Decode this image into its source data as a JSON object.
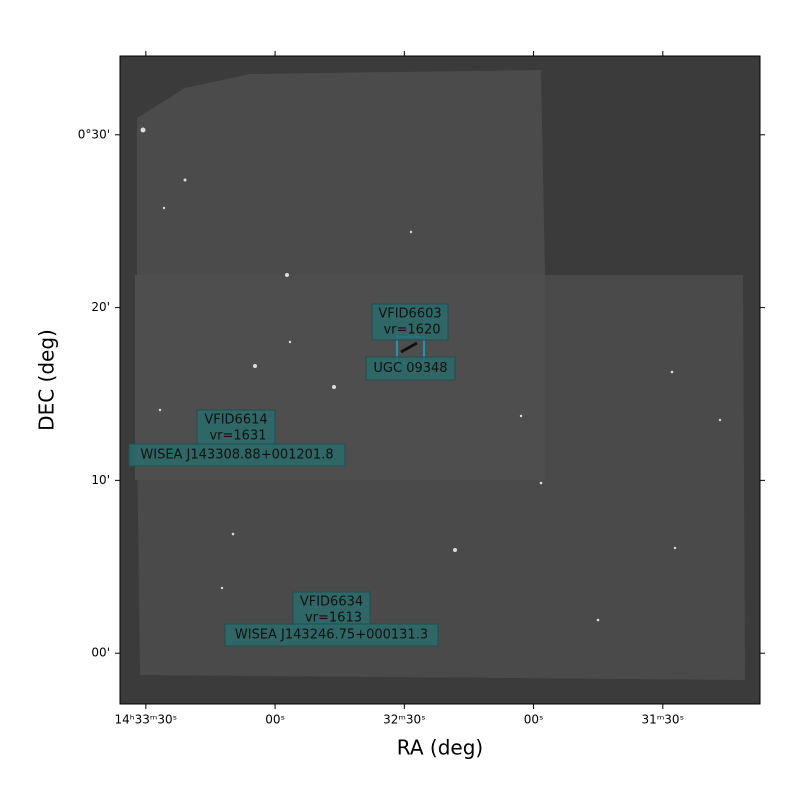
{
  "chart_data": {
    "type": "image",
    "xlabel": "RA (deg)",
    "ylabel": "DEC (deg)",
    "xlim": [
      218.4,
      217.781
    ],
    "ylim": [
      -0.049,
      0.576
    ],
    "xticks": [
      {
        "value": 218.375,
        "label": "14ʰ33ᵐ30ˢ"
      },
      {
        "value": 218.25,
        "label": "00ˢ"
      },
      {
        "value": 218.125,
        "label": "32ᵐ30ˢ"
      },
      {
        "value": 218.0,
        "label": "00ˢ"
      },
      {
        "value": 217.875,
        "label": "31ᵐ30ˢ"
      }
    ],
    "yticks": [
      {
        "value": 0.5,
        "label": "0°30'"
      },
      {
        "value": 0.3333,
        "label": "20'"
      },
      {
        "value": 0.1667,
        "label": "10'"
      },
      {
        "value": 0.0,
        "label": "00'"
      }
    ],
    "annotations": [
      {
        "lines": [
          "VFID6603",
          "vr=1620"
        ]
      },
      {
        "lines": [
          "UGC 09348"
        ]
      },
      {
        "lines": [
          "VFID6614",
          "vr=1631"
        ]
      },
      {
        "lines": [
          "WISEA J143308.88+001201.8"
        ]
      },
      {
        "lines": [
          "VFID6634",
          "vr=1613"
        ]
      },
      {
        "lines": [
          "WISEA J143246.75+000131.3"
        ]
      }
    ]
  }
}
